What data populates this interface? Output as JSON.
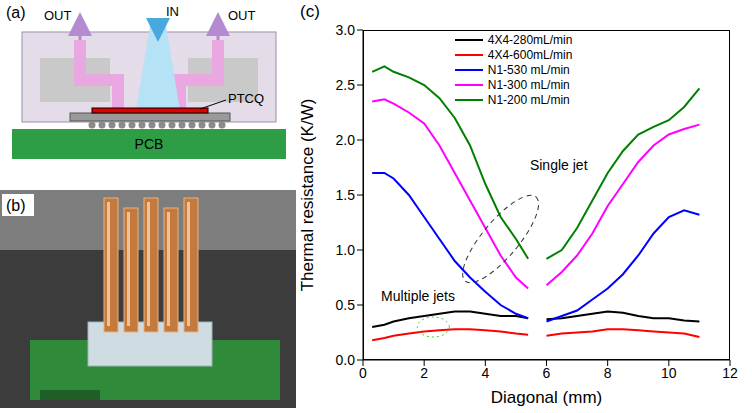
{
  "panel_a": {
    "label": "(a)",
    "out_left": "OUT",
    "in": "IN",
    "out_right": "OUT",
    "chip": "PTCQ",
    "board": "PCB"
  },
  "panel_b": {
    "label": "(b)"
  },
  "chart_data": {
    "type": "line",
    "panel_label": "(c)",
    "x_label": "Diagonal (mm)",
    "y_label": "Thermal resistance (K/W)",
    "x": [
      0.3,
      0.7,
      1,
      1.5,
      2,
      2.5,
      3,
      3.5,
      4,
      4.5,
      5,
      5.4,
      5.7,
      6,
      6.5,
      7,
      7.5,
      8,
      8.5,
      9,
      9.5,
      10,
      10.5,
      11
    ],
    "xlim": [
      0,
      12
    ],
    "xticks": [
      0,
      2,
      4,
      6,
      8,
      10,
      12
    ],
    "ylim": [
      0,
      3
    ],
    "yticks": [
      {
        "value": 0,
        "label": "0.0"
      },
      {
        "value": 0.5,
        "label": "0.5"
      },
      {
        "value": 1,
        "label": "1.0"
      },
      {
        "value": 1.5,
        "label": "1.5"
      },
      {
        "value": 2,
        "label": "2.0"
      },
      {
        "value": 2.5,
        "label": "2.5"
      },
      {
        "value": 3,
        "label": "3.0"
      }
    ],
    "grid": false,
    "legend": "top",
    "annotations": [
      "Single jet",
      "Multiple jets"
    ],
    "series": [
      {
        "name": "4X4-280mL/min",
        "color": "#000000",
        "values": [
          0.3,
          0.32,
          0.35,
          0.38,
          0.4,
          0.42,
          0.44,
          0.44,
          0.42,
          0.4,
          0.4,
          0.38,
          null,
          0.37,
          0.38,
          0.4,
          0.42,
          0.44,
          0.43,
          0.4,
          0.38,
          0.38,
          0.36,
          0.35
        ]
      },
      {
        "name": "4X4-600mL/min",
        "color": "#ff0000",
        "values": [
          0.18,
          0.2,
          0.22,
          0.24,
          0.26,
          0.27,
          0.28,
          0.28,
          0.27,
          0.26,
          0.24,
          0.23,
          null,
          0.22,
          0.24,
          0.25,
          0.26,
          0.28,
          0.28,
          0.27,
          0.26,
          0.25,
          0.24,
          0.21
        ]
      },
      {
        "name": "N1-530 mL/min",
        "color": "#0000ff",
        "values": [
          1.7,
          1.7,
          1.65,
          1.5,
          1.3,
          1.1,
          0.9,
          0.75,
          0.62,
          0.5,
          0.42,
          0.38,
          null,
          0.35,
          0.4,
          0.45,
          0.55,
          0.65,
          0.78,
          0.95,
          1.15,
          1.3,
          1.36,
          1.32
        ]
      },
      {
        "name": "N1-300 mL/min",
        "color": "#ff00ff",
        "values": [
          2.35,
          2.37,
          2.33,
          2.25,
          2.15,
          1.95,
          1.7,
          1.45,
          1.2,
          0.95,
          0.75,
          0.65,
          null,
          0.68,
          0.8,
          0.95,
          1.15,
          1.4,
          1.6,
          1.8,
          1.95,
          2.05,
          2.1,
          2.14
        ]
      },
      {
        "name": "N1-200 mL/min",
        "color": "#008000",
        "values": [
          2.62,
          2.67,
          2.62,
          2.57,
          2.5,
          2.38,
          2.2,
          1.95,
          1.6,
          1.3,
          1.1,
          0.92,
          null,
          0.92,
          1.0,
          1.2,
          1.45,
          1.7,
          1.9,
          2.05,
          2.12,
          2.18,
          2.3,
          2.47
        ]
      }
    ]
  }
}
